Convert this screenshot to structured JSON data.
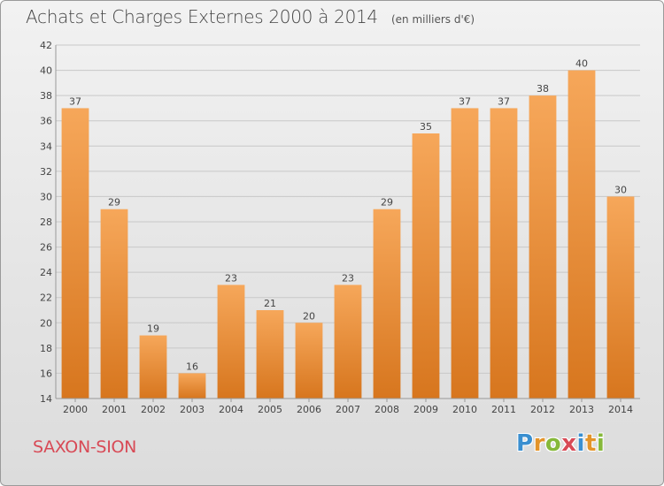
{
  "title": "Achats et Charges Externes 2000 à 2014",
  "unit_note": "(en milliers d'€)",
  "commune": "SAXON-SION",
  "logo": {
    "text": "Proxiti",
    "letters": [
      {
        "ch": "P",
        "color": "#3a8fd0"
      },
      {
        "ch": "r",
        "color": "#e3942a"
      },
      {
        "ch": "o",
        "color": "#86b83a"
      },
      {
        "ch": "x",
        "color": "#d84a56"
      },
      {
        "ch": "i",
        "color": "#3a8fd0"
      },
      {
        "ch": "t",
        "color": "#e3942a"
      },
      {
        "ch": "i",
        "color": "#86b83a"
      }
    ]
  },
  "colors": {
    "bar_light": "#f6a75a",
    "bar_dark": "#d7761e",
    "grid": "#c8c8c8",
    "text": "#444444",
    "commune": "#d84a56"
  },
  "chart_data": {
    "type": "bar",
    "categories": [
      "2000",
      "2001",
      "2002",
      "2003",
      "2004",
      "2005",
      "2006",
      "2007",
      "2008",
      "2009",
      "2010",
      "2011",
      "2012",
      "2013",
      "2014"
    ],
    "values": [
      37,
      29,
      19,
      16,
      23,
      21,
      20,
      23,
      29,
      35,
      37,
      37,
      38,
      40,
      30
    ],
    "ylim": [
      14,
      42
    ],
    "yticks": [
      14,
      16,
      18,
      20,
      22,
      24,
      26,
      28,
      30,
      32,
      34,
      36,
      38,
      40,
      42
    ],
    "grid": true,
    "data_labels": true
  }
}
